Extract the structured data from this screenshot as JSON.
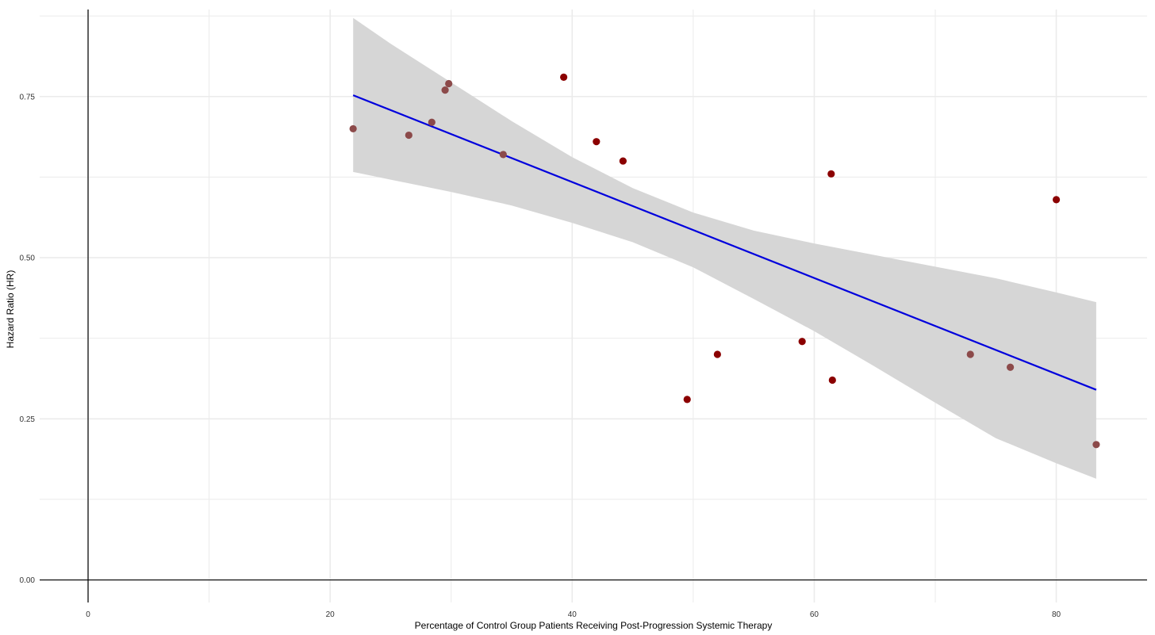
{
  "chart_data": {
    "type": "scatter",
    "title": "",
    "xlabel": "Percentage of Control Group Patients Receiving Post-Progression Systemic Therapy",
    "ylabel": "Hazard Ratio (HR)",
    "xlim": [
      -4,
      87.5
    ],
    "ylim": [
      -0.035,
      0.885
    ],
    "x_ticks": [
      0,
      20,
      40,
      60,
      80
    ],
    "x_tick_labels": [
      "0",
      "20",
      "40",
      "60",
      "80"
    ],
    "x_minor_ticks": [
      10,
      30,
      50,
      70
    ],
    "y_ticks": [
      0,
      0.25,
      0.5,
      0.75
    ],
    "y_tick_labels": [
      "0.00",
      "0.25",
      "0.50",
      "0.75"
    ],
    "y_minor_ticks": [
      0.125,
      0.375,
      0.625,
      0.875
    ],
    "grid": true,
    "reference_lines": {
      "x": 0,
      "y": 0
    },
    "points": [
      {
        "x": 21.9,
        "y": 0.7
      },
      {
        "x": 26.5,
        "y": 0.69
      },
      {
        "x": 28.4,
        "y": 0.71
      },
      {
        "x": 29.5,
        "y": 0.76
      },
      {
        "x": 29.8,
        "y": 0.77
      },
      {
        "x": 34.3,
        "y": 0.66
      },
      {
        "x": 39.3,
        "y": 0.78
      },
      {
        "x": 42.0,
        "y": 0.68
      },
      {
        "x": 44.2,
        "y": 0.65
      },
      {
        "x": 49.5,
        "y": 0.28
      },
      {
        "x": 52.0,
        "y": 0.35
      },
      {
        "x": 59.0,
        "y": 0.37
      },
      {
        "x": 61.4,
        "y": 0.63
      },
      {
        "x": 61.5,
        "y": 0.31
      },
      {
        "x": 72.9,
        "y": 0.35
      },
      {
        "x": 76.2,
        "y": 0.33
      },
      {
        "x": 80.0,
        "y": 0.59
      },
      {
        "x": 83.3,
        "y": 0.21
      }
    ],
    "fit_line": {
      "x": [
        21.9,
        83.3
      ],
      "y": [
        0.752,
        0.295
      ]
    },
    "confidence_band": {
      "x": [
        21.9,
        25,
        30,
        35,
        40,
        45,
        50,
        55,
        60,
        65,
        70,
        75,
        80,
        83.3
      ],
      "upper": [
        0.872,
        0.832,
        0.772,
        0.712,
        0.656,
        0.608,
        0.57,
        0.542,
        0.522,
        0.504,
        0.486,
        0.468,
        0.446,
        0.431
      ],
      "lower": [
        0.633,
        0.621,
        0.602,
        0.581,
        0.554,
        0.524,
        0.485,
        0.436,
        0.386,
        0.331,
        0.275,
        0.22,
        0.181,
        0.157
      ]
    },
    "colors": {
      "point_strong": "#8b0000",
      "point_muted": "#8c4a4a",
      "fit_line": "#0000dd",
      "band": "#d6d6d6",
      "grid": "#ebebeb",
      "axis": "#000000"
    }
  }
}
